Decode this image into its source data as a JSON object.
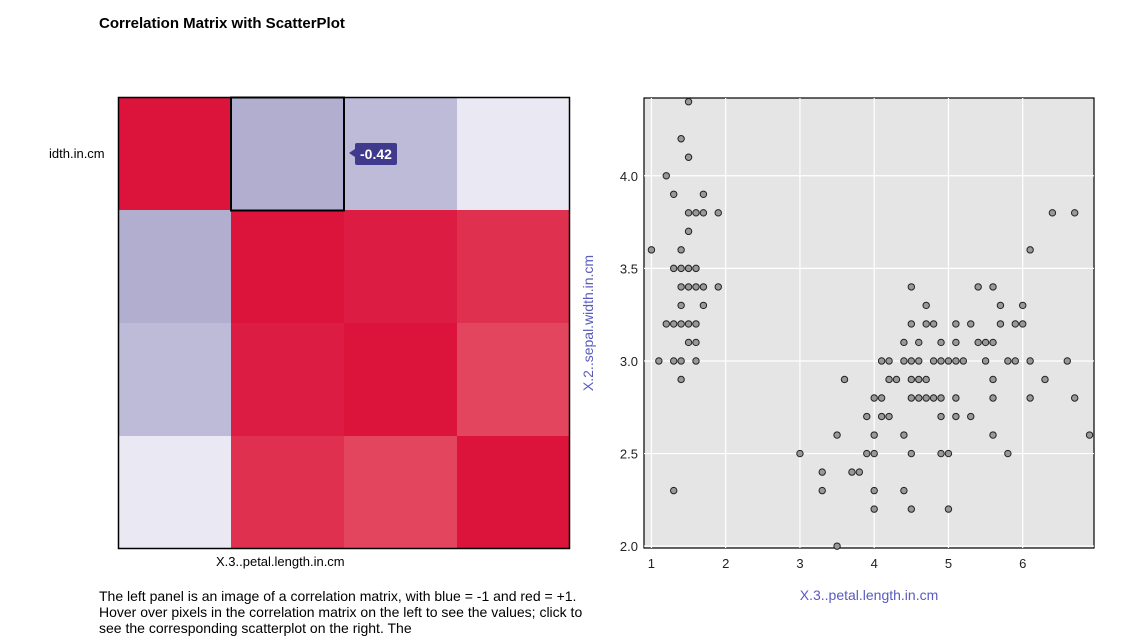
{
  "page_title": "Correlation Matrix with ScatterPlot",
  "heatmap": {
    "row_label": "idth.in.cm",
    "col_label": "X.3..petal.length.in.cm",
    "tooltip": "-0.42",
    "colors": {
      "cells": [
        [
          "#dc143c",
          "#b2aed0",
          "#bebbd9",
          "#eae9f3"
        ],
        [
          "#b2aed0",
          "#dc143c",
          "#dd1c44",
          "#e03050"
        ],
        [
          "#bebbd9",
          "#dd1c44",
          "#dc143c",
          "#e3455f"
        ],
        [
          "#eae9f3",
          "#e03050",
          "#e3455f",
          "#dc143c"
        ]
      ]
    }
  },
  "description": "The left panel is an image of a correlation matrix, with blue = -1 and red = +1. Hover over pixels in the correlation matrix on the left to see the values; click to see the corresponding scatterplot on the right. The",
  "chart_data": {
    "type": "scatter",
    "xlabel": "X.3..petal.length.in.cm",
    "ylabel": "X.2..sepal.width.in.cm",
    "xlim": [
      0.9,
      6.96
    ],
    "ylim": [
      1.99,
      4.42
    ],
    "xticks": [
      1,
      2,
      3,
      4,
      5,
      6
    ],
    "yticks": [
      2.0,
      2.5,
      3.0,
      3.5,
      4.0
    ],
    "ytick_labels": [
      "2.0",
      "2.5",
      "3.0",
      "3.5",
      "4.0"
    ],
    "grid": true,
    "points": [
      [
        1.5,
        4.4
      ],
      [
        1.4,
        4.2
      ],
      [
        1.5,
        4.1
      ],
      [
        1.2,
        4.0
      ],
      [
        1.3,
        3.9
      ],
      [
        1.7,
        3.9
      ],
      [
        1.5,
        3.8
      ],
      [
        1.6,
        3.8
      ],
      [
        1.7,
        3.8
      ],
      [
        1.9,
        3.8
      ],
      [
        1.5,
        3.7
      ],
      [
        1.4,
        3.6
      ],
      [
        1.0,
        3.6
      ],
      [
        1.3,
        3.5
      ],
      [
        1.4,
        3.5
      ],
      [
        1.5,
        3.5
      ],
      [
        1.6,
        3.5
      ],
      [
        1.4,
        3.4
      ],
      [
        1.5,
        3.4
      ],
      [
        1.6,
        3.4
      ],
      [
        1.7,
        3.4
      ],
      [
        1.9,
        3.4
      ],
      [
        1.4,
        3.3
      ],
      [
        1.7,
        3.3
      ],
      [
        1.5,
        3.2
      ],
      [
        1.2,
        3.2
      ],
      [
        1.3,
        3.2
      ],
      [
        1.4,
        3.2
      ],
      [
        1.6,
        3.2
      ],
      [
        1.5,
        3.1
      ],
      [
        1.6,
        3.1
      ],
      [
        1.1,
        3.0
      ],
      [
        1.3,
        3.0
      ],
      [
        1.4,
        3.0
      ],
      [
        1.6,
        3.0
      ],
      [
        1.4,
        2.9
      ],
      [
        1.3,
        2.3
      ],
      [
        6.4,
        3.8
      ],
      [
        6.7,
        3.8
      ],
      [
        6.1,
        3.6
      ],
      [
        4.5,
        3.4
      ],
      [
        5.4,
        3.4
      ],
      [
        5.6,
        3.4
      ],
      [
        4.7,
        3.3
      ],
      [
        5.7,
        3.3
      ],
      [
        6.0,
        3.3
      ],
      [
        4.5,
        3.2
      ],
      [
        4.7,
        3.2
      ],
      [
        4.8,
        3.2
      ],
      [
        5.1,
        3.2
      ],
      [
        5.3,
        3.2
      ],
      [
        5.7,
        3.2
      ],
      [
        5.9,
        3.2
      ],
      [
        6.0,
        3.2
      ],
      [
        4.4,
        3.1
      ],
      [
        4.6,
        3.1
      ],
      [
        4.9,
        3.1
      ],
      [
        5.1,
        3.1
      ],
      [
        5.4,
        3.1
      ],
      [
        5.5,
        3.1
      ],
      [
        5.6,
        3.1
      ],
      [
        4.1,
        3.0
      ],
      [
        4.2,
        3.0
      ],
      [
        4.4,
        3.0
      ],
      [
        4.5,
        3.0
      ],
      [
        4.6,
        3.0
      ],
      [
        4.8,
        3.0
      ],
      [
        4.9,
        3.0
      ],
      [
        5.0,
        3.0
      ],
      [
        5.1,
        3.0
      ],
      [
        5.2,
        3.0
      ],
      [
        5.5,
        3.0
      ],
      [
        5.8,
        3.0
      ],
      [
        5.9,
        3.0
      ],
      [
        6.1,
        3.0
      ],
      [
        6.6,
        3.0
      ],
      [
        3.6,
        2.9
      ],
      [
        4.2,
        2.9
      ],
      [
        4.3,
        2.9
      ],
      [
        4.5,
        2.9
      ],
      [
        4.6,
        2.9
      ],
      [
        4.7,
        2.9
      ],
      [
        5.6,
        2.9
      ],
      [
        6.3,
        2.9
      ],
      [
        4.0,
        2.8
      ],
      [
        4.1,
        2.8
      ],
      [
        4.5,
        2.8
      ],
      [
        4.6,
        2.8
      ],
      [
        4.7,
        2.8
      ],
      [
        4.8,
        2.8
      ],
      [
        4.9,
        2.8
      ],
      [
        5.1,
        2.8
      ],
      [
        5.6,
        2.8
      ],
      [
        6.1,
        2.8
      ],
      [
        6.7,
        2.8
      ],
      [
        3.9,
        2.7
      ],
      [
        4.1,
        2.7
      ],
      [
        4.2,
        2.7
      ],
      [
        4.9,
        2.7
      ],
      [
        5.1,
        2.7
      ],
      [
        5.3,
        2.7
      ],
      [
        3.5,
        2.6
      ],
      [
        4.0,
        2.6
      ],
      [
        4.4,
        2.6
      ],
      [
        5.6,
        2.6
      ],
      [
        6.9,
        2.6
      ],
      [
        3.0,
        2.5
      ],
      [
        3.9,
        2.5
      ],
      [
        4.0,
        2.5
      ],
      [
        4.5,
        2.5
      ],
      [
        4.9,
        2.5
      ],
      [
        5.0,
        2.5
      ],
      [
        5.8,
        2.5
      ],
      [
        3.3,
        2.4
      ],
      [
        3.7,
        2.4
      ],
      [
        3.8,
        2.4
      ],
      [
        3.3,
        2.3
      ],
      [
        4.0,
        2.3
      ],
      [
        4.4,
        2.3
      ],
      [
        4.0,
        2.2
      ],
      [
        4.5,
        2.2
      ],
      [
        5.0,
        2.2
      ],
      [
        3.5,
        2.0
      ]
    ]
  }
}
